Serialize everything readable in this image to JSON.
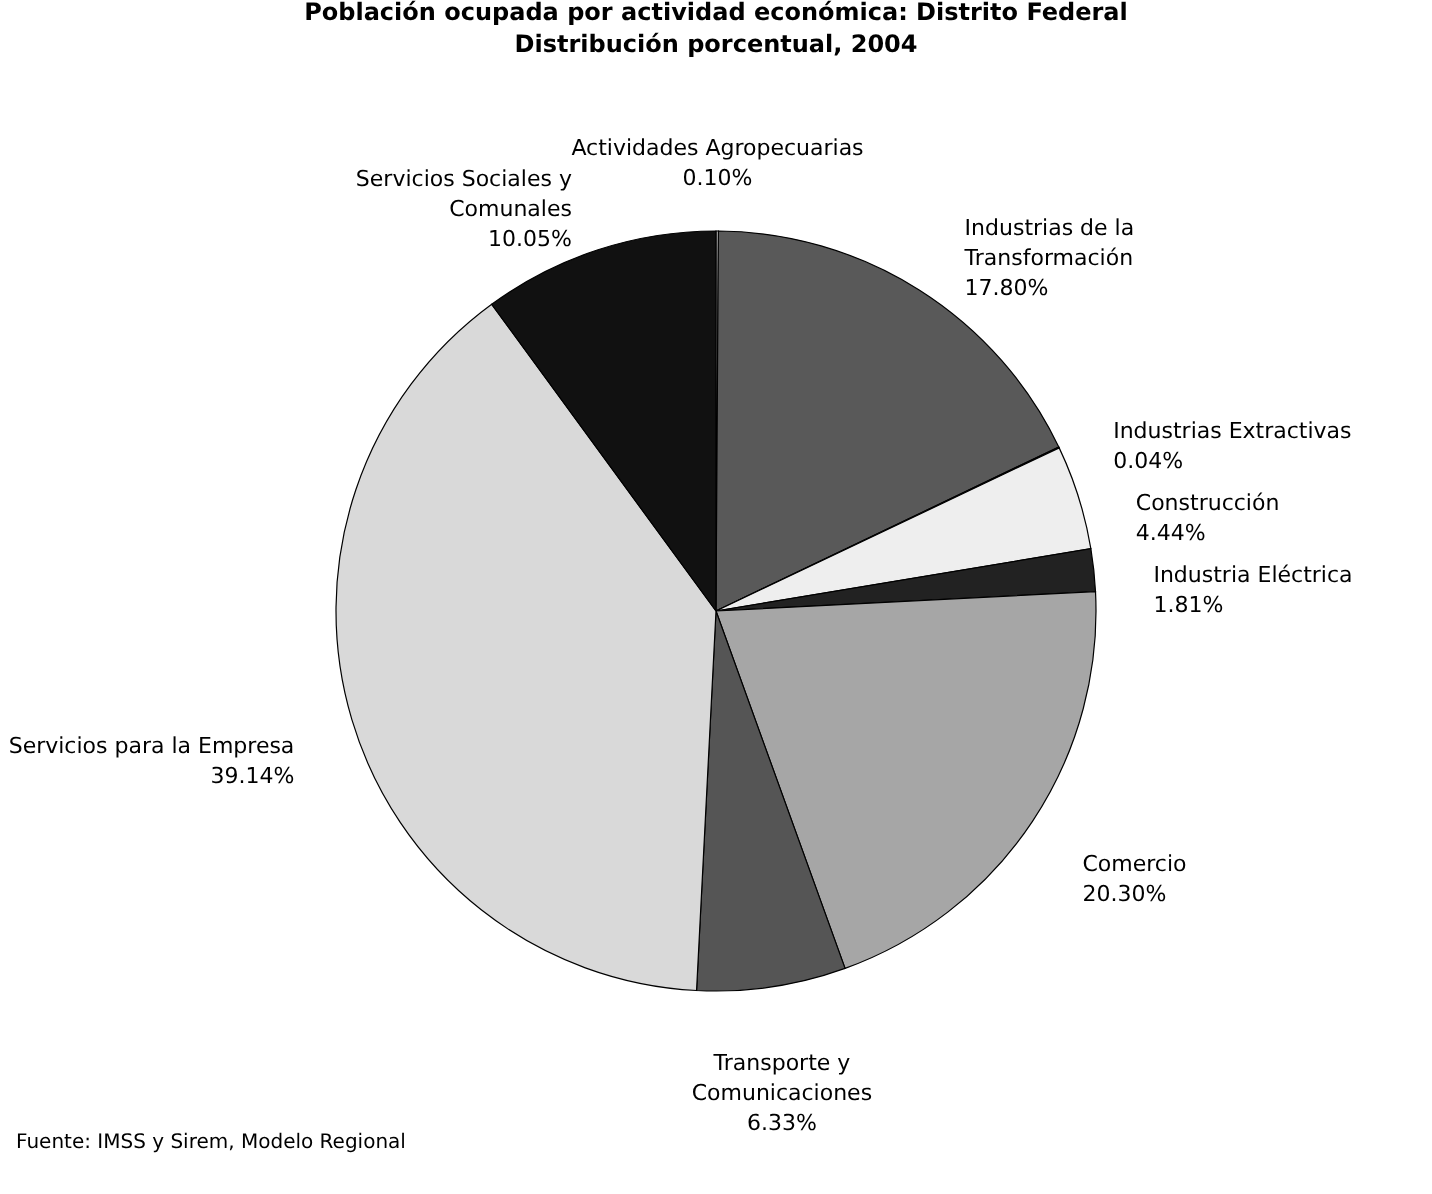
{
  "chart_data": {
    "type": "pie",
    "title": "Población ocupada por actividad económica: Distrito Federal\nDistribución porcentual, 2004",
    "categories": [
      "Actividades Agropecuarias",
      "Industrias de la\nTransformación",
      "Industrias Extractivas",
      "Construcción",
      "Industria Eléctrica",
      "Comercio",
      "Transporte y\nComunicaciones",
      "Servicios para la Empresa",
      "Servicios Sociales y\nComunales"
    ],
    "values": [
      0.1,
      17.8,
      0.04,
      4.44,
      1.81,
      20.3,
      6.33,
      39.14,
      10.05
    ],
    "colors": [
      "#ffffff",
      "#595959",
      "#404040",
      "#eeeeee",
      "#222222",
      "#a6a6a6",
      "#555555",
      "#d9d9d9",
      "#111111"
    ],
    "value_labels": [
      "0.10%",
      "17.80%",
      "0.04%",
      "4.44%",
      "1.81%",
      "20.30%",
      "6.33%",
      "39.14%",
      "10.05%"
    ],
    "annotations": [
      "Fuente: IMSS y Sirem, Modelo Regional"
    ]
  }
}
